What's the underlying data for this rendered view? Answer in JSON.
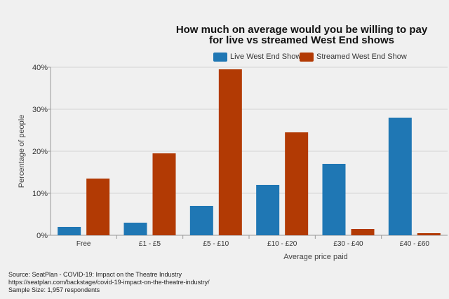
{
  "chart_data": {
    "type": "bar",
    "title_lines": [
      "How much on average would you be willing to pay",
      "for live vs streamed West End shows"
    ],
    "xlabel": "Average price paid",
    "ylabel": "Percentage of people",
    "categories": [
      "Free",
      "£1 - £5",
      "£5 - £10",
      "£10 - £20",
      "£30 - £40",
      "£40 - £60"
    ],
    "series": [
      {
        "name": "Live West End Show",
        "color": "#1f77b4",
        "values": [
          2,
          3,
          7,
          12,
          17,
          28
        ]
      },
      {
        "name": "Streamed West End Show",
        "color": "#b23a04",
        "values": [
          13.5,
          19.5,
          39.5,
          24.5,
          1.5,
          0.5
        ]
      }
    ],
    "ylim": [
      0,
      40
    ],
    "yticks": [
      0,
      10,
      20,
      30,
      40
    ],
    "ytick_labels": [
      "0%",
      "10%",
      "20%",
      "30%",
      "40%"
    ],
    "grid": true,
    "legend_position": "top"
  },
  "source": {
    "line1": "Source: SeatPlan - COVID-19: Impact on the Theatre Industry",
    "line2": "https://seatplan.com/backstage/covid-19-impact-on-the-theatre-industry/",
    "line3": "Sample Size: 1,957 respondents"
  }
}
